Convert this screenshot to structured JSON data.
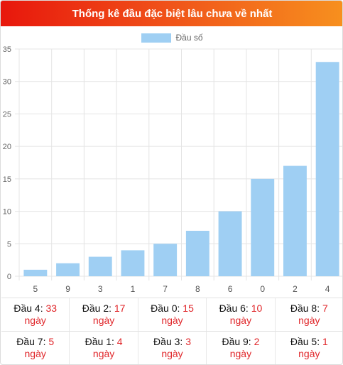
{
  "header": {
    "title": "Thống kê đầu đặc biệt lâu chưa về nhất"
  },
  "colors": {
    "bar": "#9fcff3",
    "accent_red": "#e0262a",
    "header_start": "#e8170c",
    "header_end": "#f7901e"
  },
  "chart_data": {
    "type": "bar",
    "categories": [
      "5",
      "9",
      "3",
      "1",
      "7",
      "8",
      "6",
      "0",
      "2",
      "4"
    ],
    "series": [
      {
        "name": "Đầu số",
        "values": [
          1,
          2,
          3,
          4,
          5,
          7,
          10,
          15,
          17,
          33
        ]
      }
    ],
    "ylim": [
      0,
      35
    ],
    "yticks": [
      0,
      5,
      10,
      15,
      20,
      25,
      30,
      35
    ],
    "grid": true,
    "legend": "top-center"
  },
  "stats": {
    "unit": "ngày",
    "rows": [
      [
        {
          "label": "Đầu 4:",
          "value": "33"
        },
        {
          "label": "Đầu 2:",
          "value": "17"
        },
        {
          "label": "Đầu 0:",
          "value": "15"
        },
        {
          "label": "Đầu 6:",
          "value": "10"
        },
        {
          "label": "Đầu 8:",
          "value": "7"
        }
      ],
      [
        {
          "label": "Đầu 7:",
          "value": "5"
        },
        {
          "label": "Đầu 1:",
          "value": "4"
        },
        {
          "label": "Đầu 3:",
          "value": "3"
        },
        {
          "label": "Đầu 9:",
          "value": "2"
        },
        {
          "label": "Đầu 5:",
          "value": "1"
        }
      ]
    ]
  }
}
